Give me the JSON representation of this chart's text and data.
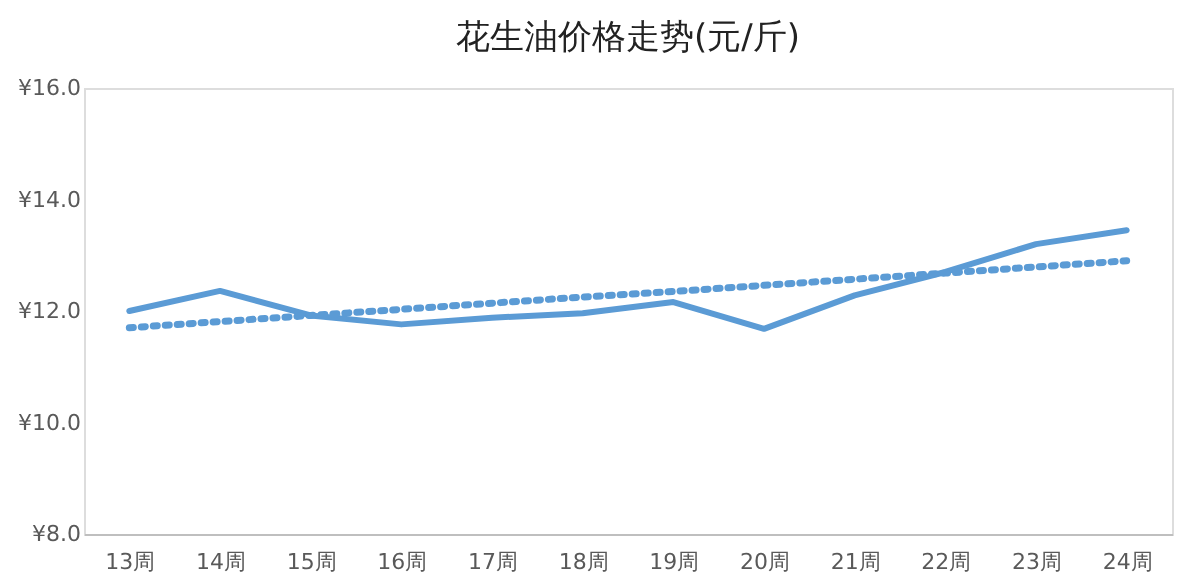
{
  "chart_data": {
    "type": "line",
    "title": "花生油价格走势(元/斤)",
    "categories": [
      "13周",
      "14周",
      "15周",
      "16周",
      "17周",
      "18周",
      "19周",
      "20周",
      "21周",
      "22周",
      "23周",
      "24周"
    ],
    "series": [
      {
        "color": "#5b9bd5",
        "line_style": "solid",
        "values": [
          12.0,
          12.36,
          11.92,
          11.76,
          11.88,
          11.96,
          12.16,
          11.68,
          12.28,
          12.7,
          13.2,
          13.45
        ]
      },
      {
        "color": "#5b9bd5",
        "line_style": "dotted",
        "values": [
          11.7,
          11.81,
          11.92,
          12.03,
          12.14,
          12.25,
          12.35,
          12.46,
          12.57,
          12.68,
          12.79,
          12.9
        ]
      }
    ],
    "ylim": [
      8.0,
      16.0
    ],
    "yticks": [
      {
        "value": 8,
        "label": "¥8.0"
      },
      {
        "value": 10,
        "label": "¥10.0"
      },
      {
        "value": 12,
        "label": "¥12.0"
      },
      {
        "value": 14,
        "label": "¥14.0"
      },
      {
        "value": 16,
        "label": "¥16.0"
      }
    ],
    "grid": false,
    "marker": "none"
  }
}
